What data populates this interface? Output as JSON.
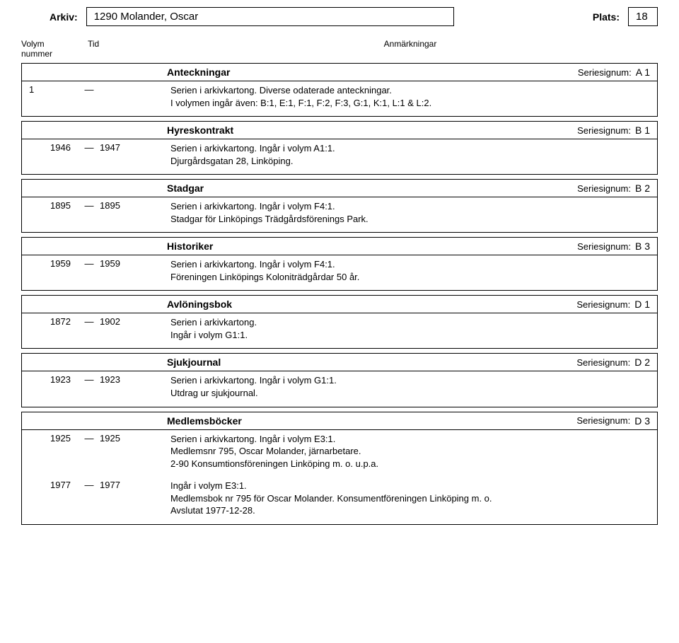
{
  "header": {
    "arkiv_label": "Arkiv:",
    "arkiv_value": "1290 Molander, Oscar",
    "plats_label": "Plats:",
    "plats_value": "18"
  },
  "columns": {
    "volym_nummer": "Volym\nnummer",
    "tid": "Tid",
    "anm": "Anmärkningar"
  },
  "series": [
    {
      "title": "Anteckningar",
      "sig_label": "Seriesignum:",
      "sig_value": "A 1",
      "entries": [
        {
          "seq": "1",
          "from": "",
          "to": "",
          "dash": "—",
          "text": "Serien i arkivkartong. Diverse odaterade anteckningar.\nI volymen ingår även: B:1, E:1, F:1, F:2, F:3, G:1, K:1, L:1 & L:2."
        }
      ]
    },
    {
      "title": "Hyreskontrakt",
      "sig_label": "Seriesignum:",
      "sig_value": "B 1",
      "entries": [
        {
          "seq": "",
          "from": "1946",
          "to": "1947",
          "dash": "—",
          "text": "Serien i arkivkartong. Ingår i volym A1:1.\nDjurgårdsgatan 28, Linköping."
        }
      ]
    },
    {
      "title": "Stadgar",
      "sig_label": "Seriesignum:",
      "sig_value": "B 2",
      "entries": [
        {
          "seq": "",
          "from": "1895",
          "to": "1895",
          "dash": "—",
          "text": "Serien i arkivkartong. Ingår i volym F4:1.\nStadgar för Linköpings Trädgårdsförenings Park."
        }
      ]
    },
    {
      "title": "Historiker",
      "sig_label": "Seriesignum:",
      "sig_value": "B 3",
      "entries": [
        {
          "seq": "",
          "from": "1959",
          "to": "1959",
          "dash": "—",
          "text": "Serien i arkivkartong. Ingår i volym F4:1.\nFöreningen Linköpings Koloniträdgårdar 50 år."
        }
      ]
    },
    {
      "title": "Avlöningsbok",
      "sig_label": "Seriesignum:",
      "sig_value": "D 1",
      "entries": [
        {
          "seq": "",
          "from": "1872",
          "to": "1902",
          "dash": "—",
          "text": "Serien i arkivkartong.\nIngår i volym G1:1."
        }
      ]
    },
    {
      "title": "Sjukjournal",
      "sig_label": "Seriesignum:",
      "sig_value": "D 2",
      "entries": [
        {
          "seq": "",
          "from": "1923",
          "to": "1923",
          "dash": "—",
          "text": "Serien i arkivkartong. Ingår i volym G1:1.\nUtdrag ur sjukjournal."
        }
      ]
    },
    {
      "title": "Medlemsböcker",
      "sig_label": "Seriesignum:",
      "sig_value": "D 3",
      "entries": [
        {
          "seq": "",
          "from": "1925",
          "to": "1925",
          "dash": "—",
          "text": "Serien i arkivkartong. Ingår i volym E3:1.\nMedlemsnr 795, Oscar Molander, järnarbetare.\n2-90 Konsumtionsföreningen Linköping m. o. u.p.a."
        },
        {
          "seq": "",
          "from": "1977",
          "to": "1977",
          "dash": "—",
          "text": "Ingår i volym E3:1.\nMedlemsbok nr 795 för Oscar Molander. Konsumentföreningen Linköping m. o.\nAvslutat 1977-12-28."
        }
      ]
    }
  ]
}
